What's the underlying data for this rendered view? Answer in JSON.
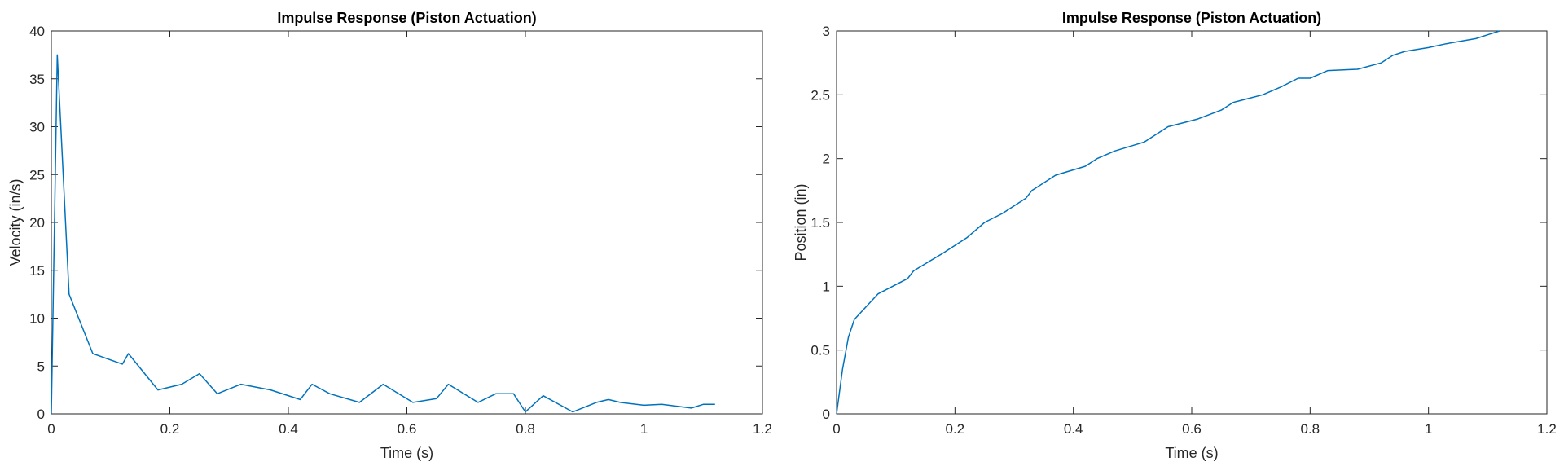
{
  "chart_data": [
    {
      "type": "line",
      "title": "Impulse Response (Piston Actuation)",
      "xlabel": "Time (s)",
      "ylabel": "Velocity (in/s)",
      "xlim": [
        0,
        1.2
      ],
      "ylim": [
        0,
        40
      ],
      "xticks": [
        0,
        0.2,
        0.4,
        0.6,
        0.8,
        1,
        1.2
      ],
      "xtick_labels": [
        "0",
        "0.2",
        "0.4",
        "0.6",
        "0.8",
        "1",
        "1.2"
      ],
      "yticks": [
        0,
        5,
        10,
        15,
        20,
        25,
        30,
        35,
        40
      ],
      "ytick_labels": [
        "0",
        "5",
        "10",
        "15",
        "20",
        "25",
        "30",
        "35",
        "40"
      ],
      "grid": false,
      "series_color": "#0072BD",
      "x": [
        0,
        0.01,
        0.03,
        0.07,
        0.12,
        0.13,
        0.18,
        0.22,
        0.25,
        0.28,
        0.32,
        0.37,
        0.42,
        0.44,
        0.47,
        0.52,
        0.56,
        0.61,
        0.65,
        0.67,
        0.72,
        0.75,
        0.78,
        0.8,
        0.83,
        0.88,
        0.92,
        0.94,
        0.96,
        1.0,
        1.03,
        1.08,
        1.1,
        1.12
      ],
      "y": [
        0,
        37.5,
        12.5,
        6.3,
        5.2,
        6.3,
        2.5,
        3.1,
        4.2,
        2.1,
        3.1,
        2.5,
        1.5,
        3.1,
        2.1,
        1.2,
        3.1,
        1.2,
        1.6,
        3.1,
        1.2,
        2.1,
        2.1,
        0.2,
        1.9,
        0.2,
        1.2,
        1.5,
        1.2,
        0.9,
        1.0,
        0.6,
        1.0,
        1.0
      ]
    },
    {
      "type": "line",
      "title": "Impulse Response (Piston Actuation)",
      "xlabel": "Time (s)",
      "ylabel": "Position (in)",
      "xlim": [
        0,
        1.2
      ],
      "ylim": [
        0,
        3
      ],
      "xticks": [
        0,
        0.2,
        0.4,
        0.6,
        0.8,
        1,
        1.2
      ],
      "xtick_labels": [
        "0",
        "0.2",
        "0.4",
        "0.6",
        "0.8",
        "1",
        "1.2"
      ],
      "yticks": [
        0,
        0.5,
        1,
        1.5,
        2,
        2.5,
        3
      ],
      "ytick_labels": [
        "0",
        "0.5",
        "1",
        "1.5",
        "2",
        "2.5",
        "3"
      ],
      "grid": false,
      "series_color": "#0072BD",
      "x": [
        0,
        0.01,
        0.02,
        0.03,
        0.07,
        0.12,
        0.13,
        0.18,
        0.22,
        0.25,
        0.28,
        0.32,
        0.33,
        0.37,
        0.42,
        0.44,
        0.47,
        0.52,
        0.56,
        0.61,
        0.65,
        0.67,
        0.72,
        0.75,
        0.78,
        0.8,
        0.83,
        0.88,
        0.92,
        0.94,
        0.96,
        1.0,
        1.03,
        1.08,
        1.1,
        1.12
      ],
      "y": [
        0,
        0.35,
        0.6,
        0.74,
        0.94,
        1.06,
        1.12,
        1.26,
        1.38,
        1.5,
        1.57,
        1.69,
        1.75,
        1.87,
        1.94,
        2.0,
        2.06,
        2.13,
        2.25,
        2.31,
        2.38,
        2.44,
        2.5,
        2.56,
        2.63,
        2.63,
        2.69,
        2.7,
        2.75,
        2.81,
        2.84,
        2.87,
        2.9,
        2.94,
        2.97,
        3.0
      ]
    }
  ]
}
